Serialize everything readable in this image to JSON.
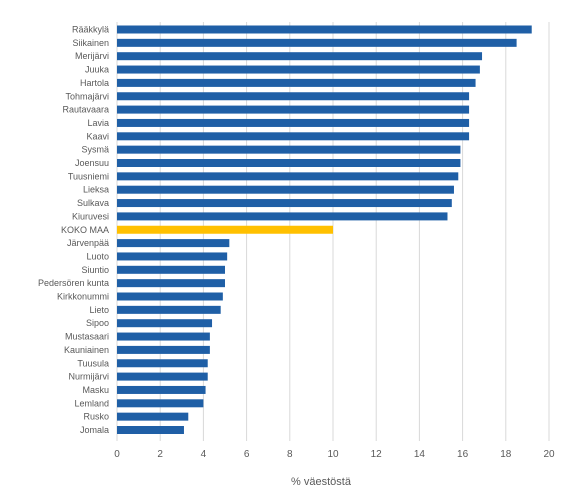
{
  "chart_data": {
    "type": "bar",
    "orientation": "horizontal",
    "categories": [
      "Rääkkylä",
      "Siikainen",
      "Merijärvi",
      "Juuka",
      "Hartola",
      "Tohmajärvi",
      "Rautavaara",
      "Lavia",
      "Kaavi",
      "Sysmä",
      "Joensuu",
      "Tuusniemi",
      "Lieksa",
      "Sulkava",
      "Kiuruvesi",
      "KOKO MAA",
      "Järvenpää",
      "Luoto",
      "Siuntio",
      "Pedersören kunta",
      "Kirkkonummi",
      "Lieto",
      "Sipoo",
      "Mustasaari",
      "Kauniainen",
      "Tuusula",
      "Nurmijärvi",
      "Masku",
      "Lemland",
      "Rusko",
      "Jomala"
    ],
    "values": [
      19.2,
      18.5,
      16.9,
      16.8,
      16.6,
      16.3,
      16.3,
      16.3,
      16.3,
      15.9,
      15.9,
      15.8,
      15.6,
      15.5,
      15.3,
      10.0,
      5.2,
      5.1,
      5.0,
      5.0,
      4.9,
      4.8,
      4.4,
      4.3,
      4.3,
      4.2,
      4.2,
      4.1,
      4.0,
      3.3,
      3.1
    ],
    "highlight": "KOKO MAA",
    "xlabel": "% väestöstä",
    "xlim": [
      0,
      20
    ],
    "xticks": [
      "0",
      "2",
      "4",
      "6",
      "8",
      "10",
      "12",
      "14",
      "16",
      "18",
      "20"
    ],
    "grid": true,
    "legend": "none",
    "colors": {
      "bar": "#1f5fa6",
      "highlight": "#ffc000",
      "grid": "#d9d9d9",
      "text": "#595959"
    }
  }
}
